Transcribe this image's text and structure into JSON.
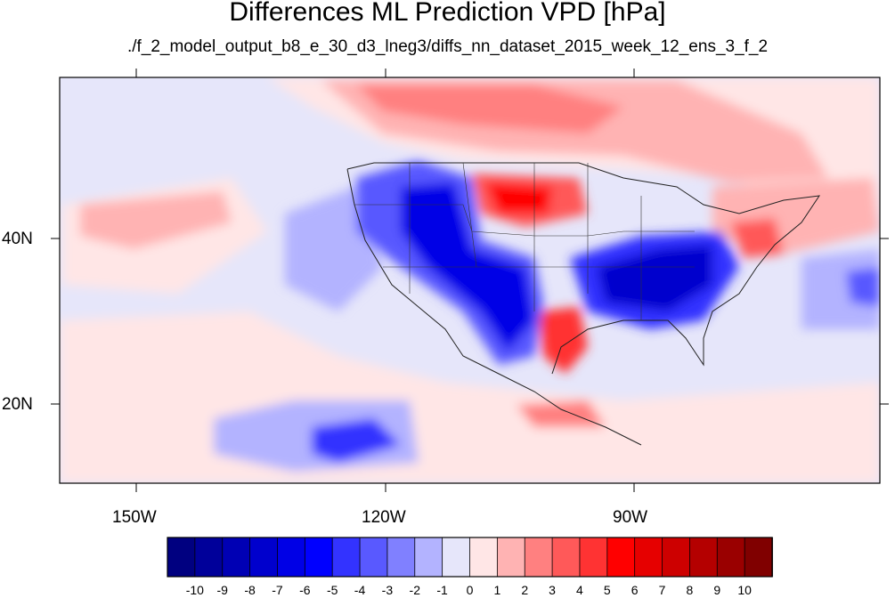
{
  "title": "Differences ML Prediction VPD [hPa]",
  "subtitle": "./f_2_model_output_b8_e_30_d3_lneg3/diffs_nn_dataset_2015_week_12_ens_3_f_2",
  "map": {
    "lon_labels": [
      "150W",
      "120W",
      "90W"
    ],
    "lat_labels": [
      "40N",
      "20N"
    ],
    "lon_range": [
      -159,
      -60
    ],
    "lat_range": [
      11,
      60
    ]
  },
  "colorbar": {
    "labels": [
      "-10",
      "-9",
      "-8",
      "-7",
      "-6",
      "-5",
      "-4",
      "-3",
      "-2",
      "-1",
      "0",
      "1",
      "2",
      "3",
      "4",
      "5",
      "6",
      "7",
      "8",
      "9",
      "10"
    ],
    "colors": [
      "#000080",
      "#00009a",
      "#0000b4",
      "#0000cd",
      "#0000e6",
      "#0000ff",
      "#3333ff",
      "#5959ff",
      "#8080ff",
      "#b3b3ff",
      "#e6e6fa",
      "#ffe6e6",
      "#ffb3b3",
      "#ff8080",
      "#ff5959",
      "#ff3333",
      "#ff0000",
      "#e60000",
      "#cd0000",
      "#b40000",
      "#9a0000",
      "#800000"
    ]
  }
}
